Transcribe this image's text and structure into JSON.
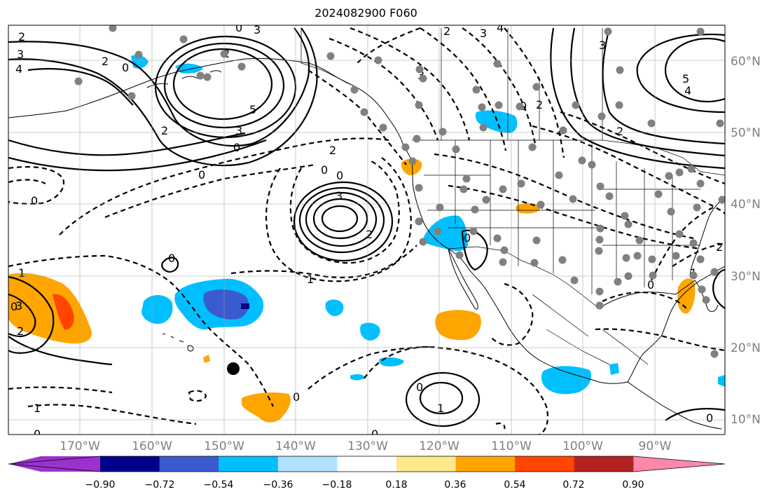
{
  "title": "2024082900 F060",
  "lat_labels": [
    "60°N",
    "50°N",
    "40°N",
    "30°N",
    "20°N",
    "10°N"
  ],
  "lon_labels": [
    "170°W",
    "160°W",
    "150°W",
    "140°W",
    "130°W",
    "120°W",
    "110°W",
    "100°W",
    "90°W"
  ],
  "colorbar": {
    "ticks": [
      "−0.90",
      "−0.72",
      "−0.54",
      "−0.36",
      "−0.18",
      "0.18",
      "0.36",
      "0.54",
      "0.72",
      "0.90"
    ],
    "colors": [
      "#9a32cd",
      "#00008b",
      "#3a5bd0",
      "#00bfff",
      "#b0e2ff",
      "#ffffff",
      "#fee98b",
      "#ffa500",
      "#ff4500",
      "#b22222",
      "#ff88aa"
    ]
  },
  "contour_labels": [
    "2",
    "3",
    "4",
    "2",
    "0",
    "2",
    "3",
    "5",
    "0",
    "2",
    "0",
    "3",
    "2",
    "3",
    "4",
    "3",
    "2",
    "0",
    "3",
    "5",
    "4",
    "2",
    "0",
    "0",
    "2",
    "0",
    "3",
    "2",
    "0",
    "1",
    "0",
    "0",
    "1",
    "2",
    "3",
    "1",
    "0",
    "1",
    "0",
    "0",
    "0",
    "0",
    "2",
    "1",
    "0",
    "0"
  ],
  "legend_colors": {
    "station": "#808080",
    "marker": "#000000"
  }
}
